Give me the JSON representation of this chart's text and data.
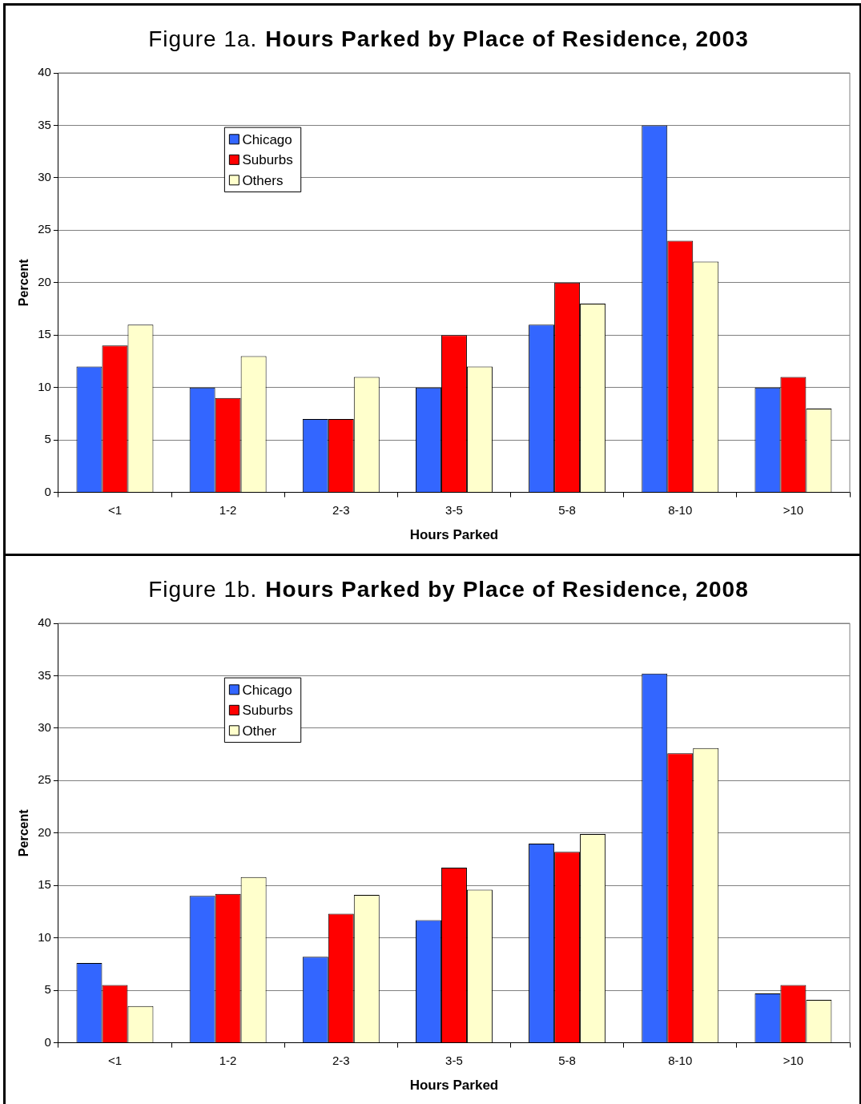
{
  "chart_data": [
    {
      "type": "bar",
      "title": "Figure 1a. Hours Parked by Place of Residence, 2003",
      "xlabel": "Hours Parked",
      "ylabel": "Percent",
      "categories": [
        "<1",
        "1-2",
        "2-3",
        "3-5",
        "5-8",
        "8-10",
        ">10"
      ],
      "series": [
        {
          "name": "Chicago",
          "color": "#3366ff",
          "values": [
            12,
            10,
            7,
            10,
            16,
            35,
            10
          ]
        },
        {
          "name": "Suburbs",
          "color": "#ff0000",
          "values": [
            14,
            9,
            7,
            15,
            20,
            24,
            11
          ]
        },
        {
          "name": "Others",
          "color": "#ffffcc",
          "values": [
            16,
            13,
            11,
            12,
            18,
            22,
            8
          ]
        }
      ],
      "ylim": [
        0,
        40
      ],
      "yticks": [
        0,
        5,
        10,
        15,
        20,
        25,
        30,
        35,
        40
      ],
      "grid": "y",
      "legend": "top left"
    },
    {
      "type": "bar",
      "title": "Figure 1b. Hours Parked by Place of Residence, 2008",
      "xlabel": "Hours Parked",
      "ylabel": "Percent",
      "categories": [
        "<1",
        "1-2",
        "2-3",
        "3-5",
        "5-8",
        "8-10",
        ">10"
      ],
      "series": [
        {
          "name": "Chicago",
          "color": "#3366ff",
          "values": [
            7.6,
            14.0,
            8.2,
            11.7,
            19.0,
            35.2,
            4.7
          ]
        },
        {
          "name": "Suburbs",
          "color": "#ff0000",
          "values": [
            5.5,
            14.2,
            12.3,
            16.7,
            18.2,
            27.6,
            5.5
          ]
        },
        {
          "name": "Other",
          "color": "#ffffcc",
          "values": [
            3.5,
            15.8,
            14.1,
            14.6,
            19.9,
            28.1,
            4.1
          ]
        }
      ],
      "ylim": [
        0,
        40
      ],
      "yticks": [
        0,
        5,
        10,
        15,
        20,
        25,
        30,
        35,
        40
      ],
      "grid": "y",
      "legend": "top left"
    }
  ]
}
